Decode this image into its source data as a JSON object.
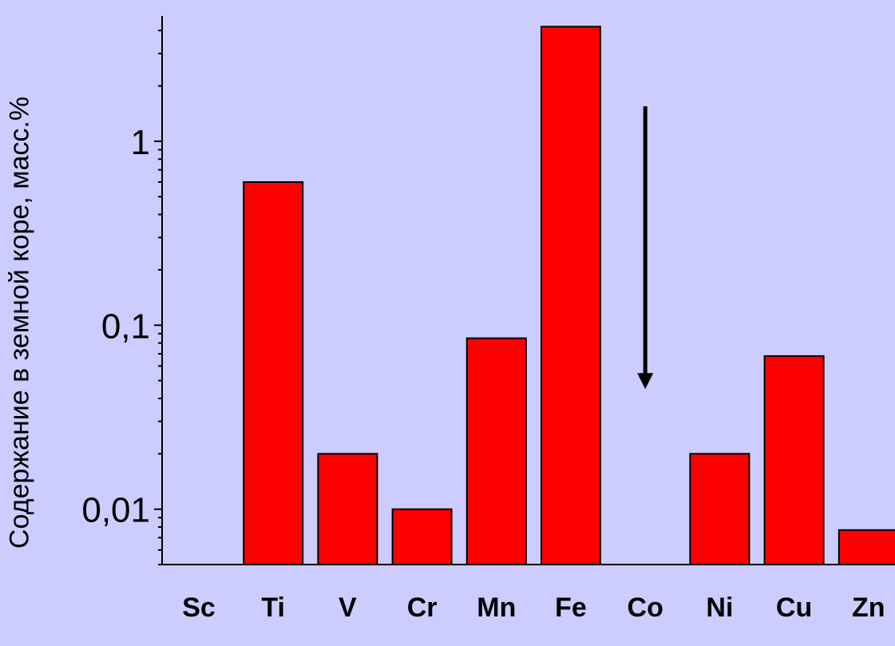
{
  "chart_data": {
    "type": "bar",
    "categories": [
      "Sc",
      "Ti",
      "V",
      "Cr",
      "Mn",
      "Fe",
      "Co",
      "Ni",
      "Cu",
      "Zn"
    ],
    "values": [
      0.005,
      0.6,
      0.02,
      0.01,
      0.085,
      4.2,
      0.005,
      0.02,
      0.068,
      0.0077
    ],
    "yscale": "log",
    "ylim": [
      0.005,
      4.8
    ],
    "yticks": [
      {
        "value": 0.01,
        "label": "0,01"
      },
      {
        "value": 0.1,
        "label": "0,1"
      },
      {
        "value": 1,
        "label": "1"
      }
    ],
    "ylabel": "Содержание в земной коре, масс.%",
    "xlabel": "",
    "title": "",
    "bar_color": "#ff0000",
    "background": "#ccccff",
    "annotations": [
      {
        "type": "arrow",
        "direction": "down",
        "from_y": 1.55,
        "to_y": 0.045,
        "position": "Co"
      }
    ]
  }
}
